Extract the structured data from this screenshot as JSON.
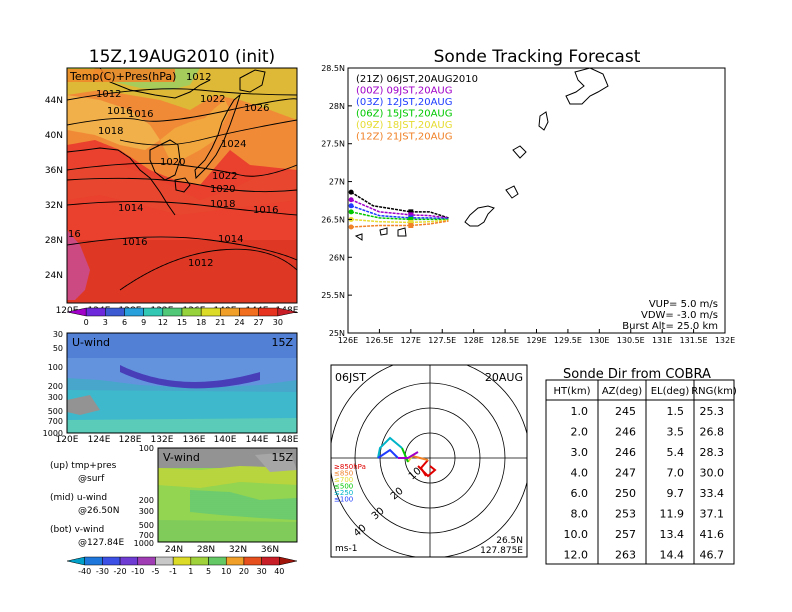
{
  "left_title": "15Z,19AUG2010 (init)",
  "map_panel": {
    "label": "Temp(C)+Pres(hPa)",
    "lat_labels": [
      "44N",
      "40N",
      "36N",
      "32N",
      "28N",
      "24N"
    ],
    "lon_labels": [
      "120E",
      "124E",
      "128E",
      "132E",
      "136E",
      "140E",
      "144E",
      "148E"
    ],
    "isobar_labels": [
      "1012",
      "1014",
      "1016",
      "1018",
      "1020",
      "1022",
      "1024",
      "1026",
      "1016",
      "1018",
      "1020",
      "1022",
      "1016",
      "1014",
      "1012",
      "16",
      "1012",
      "1016",
      "1014"
    ],
    "colorbar_ticks": [
      "0",
      "3",
      "6",
      "9",
      "12",
      "15",
      "18",
      "21",
      "24",
      "27",
      "30"
    ]
  },
  "u_panel": {
    "label": "U-wind",
    "time": "15Z",
    "lev_labels": [
      "30",
      "50",
      "100",
      "200",
      "300",
      "500",
      "700",
      "1000"
    ],
    "lon_labels": [
      "120E",
      "124E",
      "128E",
      "132E",
      "136E",
      "140E",
      "144E",
      "148E"
    ]
  },
  "v_panel": {
    "label": "V-wind",
    "time": "15Z",
    "lev_labels": [
      "100",
      "200",
      "300",
      "500",
      "700",
      "1000"
    ],
    "lat_labels": [
      "24N",
      "28N",
      "32N",
      "36N"
    ]
  },
  "legend_notes": [
    {
      "text": "(up) tmp+pres",
      "sub": "@surf"
    },
    {
      "text": "(mid) u-wind",
      "sub": "@26.50N"
    },
    {
      "text": "(bot) v-wind",
      "sub": "@127.84E"
    }
  ],
  "wind_colorbar_ticks": [
    "-40",
    "-30",
    "-20",
    "-10",
    "-5",
    "-1",
    "1",
    "5",
    "10",
    "20",
    "30",
    "40"
  ],
  "main_title": "Sonde Tracking Forecast",
  "track_panel": {
    "y_ticks": [
      "28.5N",
      "28N",
      "27.5N",
      "27N",
      "26.5N",
      "26N",
      "25.5N",
      "25N"
    ],
    "x_ticks": [
      "126E",
      "126.5E",
      "127E",
      "127.5E",
      "128E",
      "128.5E",
      "129E",
      "129.5E",
      "130E",
      "130.5E",
      "131E",
      "131.5E",
      "132E"
    ],
    "legend": [
      {
        "text": "(21Z)  06JST,20AUG2010",
        "color": "#000000"
      },
      {
        "text": "(00Z)  09JST,20AUG",
        "color": "#a000c8"
      },
      {
        "text": "(03Z)  12JST,20AUG",
        "color": "#1e3cff"
      },
      {
        "text": "(06Z)  15JST,20AUG",
        "color": "#00c800"
      },
      {
        "text": "(09Z)  18JST,20AUG",
        "color": "#e6dc32"
      },
      {
        "text": "(12Z)  21JST,20AUG",
        "color": "#f08228"
      }
    ],
    "params": [
      "VUP=  5.0  m/s",
      "VDW= -3.0  m/s",
      "Burst Alt=  25.0  km"
    ]
  },
  "chart_data": {
    "type": "line",
    "title": "Sonde Tracking Forecast",
    "xlabel": "",
    "ylabel": "",
    "xlim": [
      126,
      132
    ],
    "ylim": [
      25,
      28.5
    ],
    "series": [
      {
        "name": "(21Z) 06JST,20AUG2010",
        "color": "#000000",
        "x": [
          126.05,
          126.4,
          127.0,
          127.3,
          127.6
        ],
        "y": [
          26.86,
          26.68,
          26.6,
          26.6,
          26.52
        ]
      },
      {
        "name": "(00Z) 09JST,20AUG",
        "color": "#a000c8",
        "x": [
          126.05,
          126.5,
          127.0,
          127.3,
          127.6
        ],
        "y": [
          26.76,
          26.6,
          26.56,
          26.55,
          26.52
        ]
      },
      {
        "name": "(03Z) 12JST,20AUG",
        "color": "#1e3cff",
        "x": [
          126.05,
          126.5,
          127.0,
          127.3,
          127.6
        ],
        "y": [
          26.68,
          26.55,
          26.52,
          26.52,
          26.51
        ]
      },
      {
        "name": "(06Z) 15JST,20AUG",
        "color": "#00c800",
        "x": [
          126.05,
          126.5,
          127.0,
          127.3,
          127.6
        ],
        "y": [
          26.6,
          26.52,
          26.5,
          26.5,
          26.5
        ]
      },
      {
        "name": "(09Z) 18JST,20AUG",
        "color": "#e6dc32",
        "x": [
          126.05,
          126.5,
          127.0,
          127.3,
          127.6
        ],
        "y": [
          26.5,
          26.47,
          26.46,
          26.47,
          26.49
        ]
      },
      {
        "name": "(12Z) 21JST,20AUG",
        "color": "#f08228",
        "x": [
          126.05,
          126.5,
          127.0,
          127.3,
          127.6
        ],
        "y": [
          26.4,
          26.42,
          26.42,
          26.44,
          26.48
        ]
      }
    ]
  },
  "polar_panel": {
    "time_label": "06JST",
    "date_label": "20AUG",
    "ring_labels": [
      "10",
      "20",
      "30",
      "40"
    ],
    "pressure_labels": [
      {
        "text": "≥850hPa",
        "color": "#e00000"
      },
      {
        "text": "≤850",
        "color": "#f08228"
      },
      {
        "text": "≤700",
        "color": "#e6dc32"
      },
      {
        "text": "≤500",
        "color": "#00c800"
      },
      {
        "text": "≤250",
        "color": "#00b4c8"
      },
      {
        "text": "≤100",
        "color": "#1e3cff"
      }
    ],
    "unit": "ms-1",
    "loc_lat": "26.5N",
    "loc_lon": "127.875E"
  },
  "sonde_table": {
    "title": "Sonde Dir from COBRA",
    "headers": [
      "HT(km)",
      "AZ(deg)",
      "EL(deg)",
      "RNG(km)"
    ],
    "rows": [
      [
        "1.0",
        "245",
        "1.5",
        "25.3"
      ],
      [
        "2.0",
        "246",
        "3.5",
        "26.8"
      ],
      [
        "3.0",
        "246",
        "5.4",
        "28.3"
      ],
      [
        "4.0",
        "247",
        "7.0",
        "30.0"
      ],
      [
        "6.0",
        "250",
        "9.7",
        "33.4"
      ],
      [
        "8.0",
        "253",
        "11.9",
        "37.1"
      ],
      [
        "10.0",
        "257",
        "13.4",
        "41.6"
      ],
      [
        "12.0",
        "263",
        "14.4",
        "46.7"
      ]
    ]
  }
}
